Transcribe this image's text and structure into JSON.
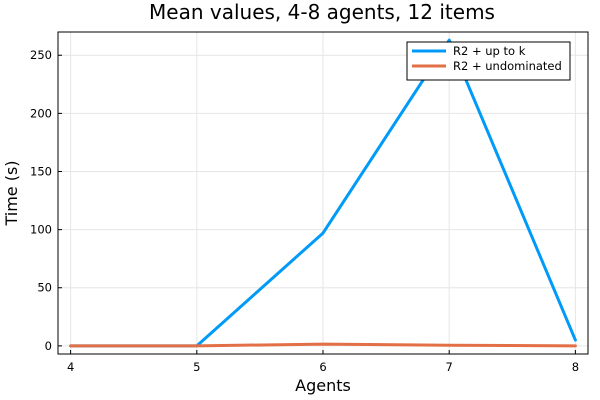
{
  "chart_data": {
    "type": "line",
    "title": "Mean values, 4-8 agents, 12 items",
    "xlabel": "Agents",
    "ylabel": "Time (s)",
    "x": [
      4,
      5,
      6,
      7,
      8
    ],
    "xlim": [
      3.9,
      8.1
    ],
    "ylim": [
      -7,
      270
    ],
    "xticks": [
      4,
      5,
      6,
      7,
      8
    ],
    "yticks": [
      0,
      50,
      100,
      150,
      200,
      250
    ],
    "grid": true,
    "legend_position": "top-right",
    "series": [
      {
        "name": "R2 + up to k",
        "color": "#009af9",
        "values": [
          0,
          0,
          97,
          263,
          5
        ]
      },
      {
        "name": "R2 + undominated",
        "color": "#e26f46",
        "values": [
          0,
          0,
          1.5,
          0.5,
          0
        ]
      }
    ]
  }
}
